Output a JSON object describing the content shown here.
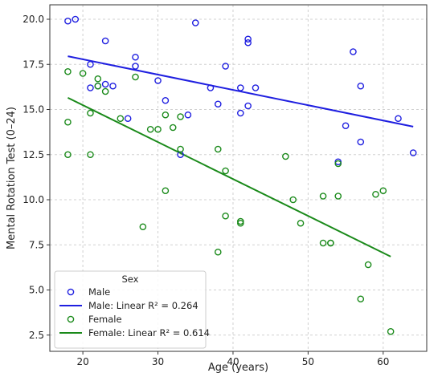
{
  "chart_data": {
    "type": "scatter",
    "xlabel": "Age (years)",
    "ylabel": "Mental Rotation Test (0–24)",
    "xlim": [
      15.6,
      65.8
    ],
    "ylim": [
      1.6,
      20.8
    ],
    "xticks": [
      "20",
      "30",
      "40",
      "50",
      "60"
    ],
    "yticks": [
      "2.5",
      "5.0",
      "7.5",
      "10.0",
      "12.5",
      "15.0",
      "17.5",
      "20.0"
    ],
    "grid": true,
    "legend": {
      "title": "Sex",
      "placement": "bottom-left",
      "entries": [
        "Male",
        "Male: Linear R² = 0.264",
        "Female",
        "Female: Linear R² = 0.614"
      ]
    },
    "colors": {
      "male": "#1f1fe0",
      "female": "#1a8a1a"
    },
    "series": [
      {
        "name": "Male",
        "color": "#1f1fe0",
        "points": [
          [
            18,
            19.9
          ],
          [
            19,
            20.0
          ],
          [
            23,
            18.8
          ],
          [
            21,
            17.5
          ],
          [
            21,
            16.2
          ],
          [
            22,
            16.3
          ],
          [
            23,
            16.4
          ],
          [
            24,
            16.3
          ],
          [
            27,
            17.9
          ],
          [
            27,
            17.4
          ],
          [
            30,
            16.6
          ],
          [
            31,
            15.5
          ],
          [
            26,
            14.5
          ],
          [
            34,
            14.7
          ],
          [
            33,
            12.5
          ],
          [
            35,
            19.8
          ],
          [
            37,
            16.2
          ],
          [
            38,
            15.3
          ],
          [
            39,
            17.4
          ],
          [
            41,
            16.2
          ],
          [
            41,
            14.8
          ],
          [
            42,
            18.9
          ],
          [
            42,
            18.7
          ],
          [
            42,
            15.2
          ],
          [
            43,
            16.2
          ],
          [
            54,
            12.1
          ],
          [
            55,
            14.1
          ],
          [
            56,
            18.2
          ],
          [
            57,
            16.3
          ],
          [
            57,
            13.2
          ],
          [
            62,
            14.5
          ],
          [
            64,
            12.6
          ]
        ]
      },
      {
        "name": "Female",
        "color": "#1a8a1a",
        "points": [
          [
            18,
            17.1
          ],
          [
            18,
            14.3
          ],
          [
            18,
            12.5
          ],
          [
            20,
            17.0
          ],
          [
            21,
            14.8
          ],
          [
            21,
            12.5
          ],
          [
            22,
            16.7
          ],
          [
            22,
            16.3
          ],
          [
            23,
            16.0
          ],
          [
            25,
            14.5
          ],
          [
            27,
            16.8
          ],
          [
            28,
            8.5
          ],
          [
            29,
            13.9
          ],
          [
            30,
            13.9
          ],
          [
            31,
            14.7
          ],
          [
            31,
            10.5
          ],
          [
            32,
            14.0
          ],
          [
            33,
            12.8
          ],
          [
            33,
            14.6
          ],
          [
            38,
            12.8
          ],
          [
            38,
            7.1
          ],
          [
            39,
            11.6
          ],
          [
            39,
            9.1
          ],
          [
            41,
            8.8
          ],
          [
            41,
            8.7
          ],
          [
            47,
            12.4
          ],
          [
            48,
            10.0
          ],
          [
            49,
            8.7
          ],
          [
            52,
            10.2
          ],
          [
            52,
            7.6
          ],
          [
            53,
            7.6
          ],
          [
            53,
            7.6
          ],
          [
            54,
            10.2
          ],
          [
            54,
            12.0
          ],
          [
            57,
            4.5
          ],
          [
            58,
            6.4
          ],
          [
            59,
            10.3
          ],
          [
            60,
            10.5
          ],
          [
            61,
            2.7
          ]
        ]
      }
    ],
    "fit_lines": [
      {
        "name": "Male: Linear R² = 0.264",
        "color": "#1f1fe0",
        "from": [
          18,
          17.95
        ],
        "to": [
          64,
          14.05
        ]
      },
      {
        "name": "Female: Linear R² = 0.614",
        "color": "#1a8a1a",
        "from": [
          18,
          15.65
        ],
        "to": [
          61,
          6.85
        ]
      }
    ]
  }
}
